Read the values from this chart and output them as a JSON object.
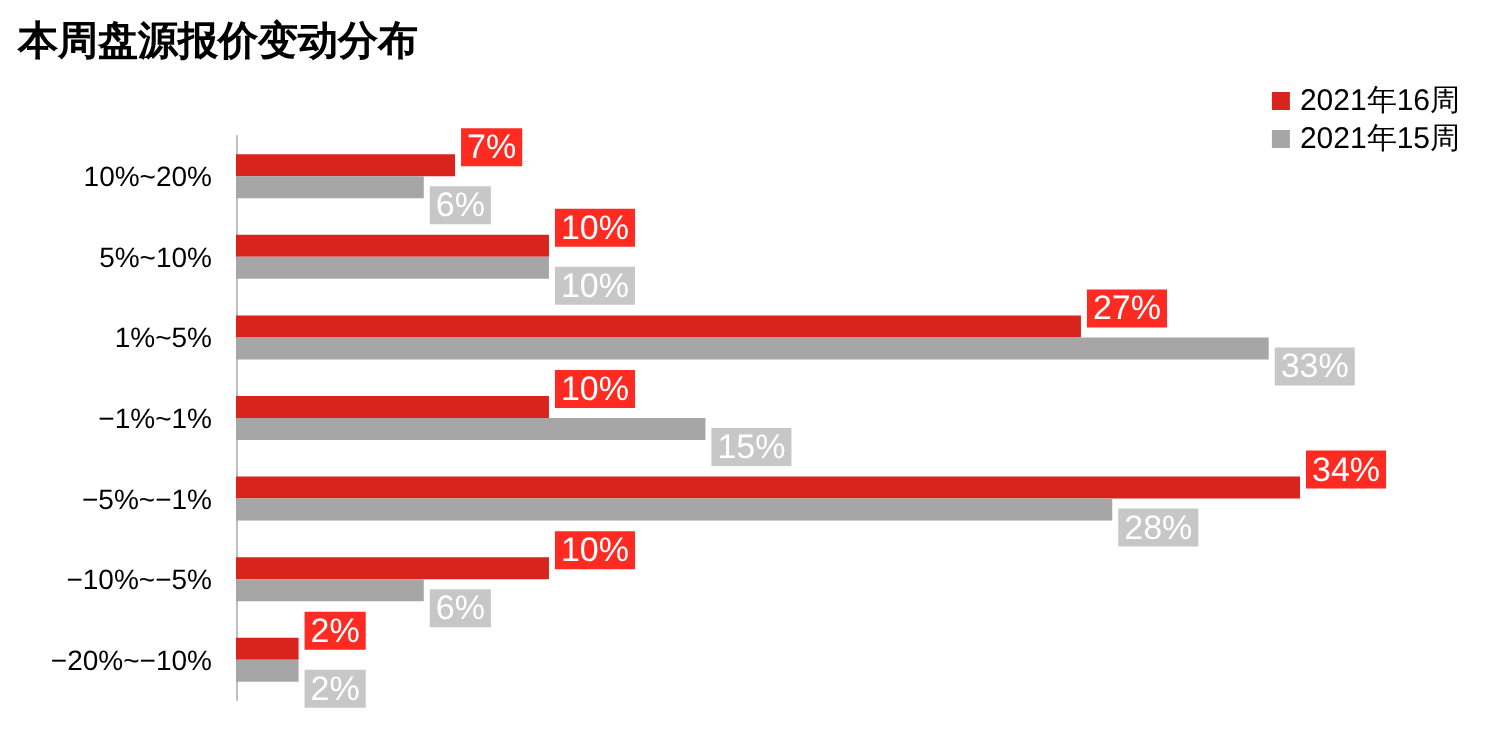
{
  "chart_data": {
    "type": "bar",
    "orientation": "horizontal",
    "title": "本周盘源报价变动分布",
    "categories": [
      "10%~20%",
      "5%~10%",
      "1%~5%",
      "−1%~1%",
      "−5%~−1%",
      "−10%~−5%",
      "−20%~−10%"
    ],
    "series": [
      {
        "name": "2021年16周",
        "color": "#d9231d",
        "values": [
          7,
          10,
          27,
          10,
          34,
          10,
          2
        ],
        "value_labels": [
          "7%",
          "10%",
          "27%",
          "10%",
          "34%",
          "10%",
          "2%"
        ]
      },
      {
        "name": "2021年15周",
        "color": "#a6a6a6",
        "values": [
          6,
          10,
          33,
          15,
          28,
          6,
          2
        ],
        "value_labels": [
          "6%",
          "10%",
          "33%",
          "15%",
          "28%",
          "6%",
          "2%"
        ]
      }
    ],
    "legend": "top right",
    "grid": false
  }
}
